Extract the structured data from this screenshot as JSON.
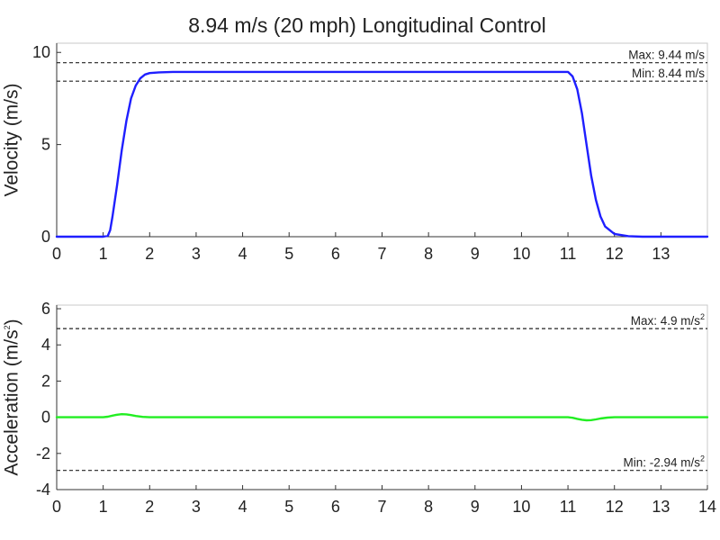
{
  "chart_data": [
    {
      "type": "line",
      "title": "8.94 m/s (20 mph) Longitudinal Control",
      "xlabel": "",
      "ylabel": "Velocity (m/s)",
      "xlim": [
        0,
        14
      ],
      "ylim": [
        0,
        10.5
      ],
      "x_ticks": [
        0,
        1,
        2,
        3,
        4,
        5,
        6,
        7,
        8,
        9,
        10,
        11,
        12,
        13
      ],
      "y_ticks": [
        0,
        5,
        10
      ],
      "grid": false,
      "series": [
        {
          "color": "#1f1fff",
          "x": [
            0,
            1.0,
            1.1,
            1.15,
            1.2,
            1.3,
            1.4,
            1.5,
            1.6,
            1.7,
            1.8,
            1.9,
            2.0,
            2.2,
            2.5,
            3.0,
            11.0,
            11.1,
            11.2,
            11.3,
            11.4,
            11.5,
            11.6,
            11.7,
            11.8,
            12.0,
            12.3,
            12.6,
            14.0
          ],
          "y": [
            0,
            0,
            0.05,
            0.35,
            1.1,
            2.8,
            4.7,
            6.3,
            7.5,
            8.2,
            8.6,
            8.8,
            8.88,
            8.92,
            8.94,
            8.94,
            8.94,
            8.7,
            8.0,
            6.7,
            5.0,
            3.3,
            2.0,
            1.1,
            0.55,
            0.15,
            0.03,
            0,
            0
          ]
        }
      ],
      "reference_lines": [
        {
          "y": 9.44,
          "label": "Max: 9.44 m/s",
          "style": "dashed"
        },
        {
          "y": 8.44,
          "label": "Min: 8.44 m/s",
          "style": "dashed"
        }
      ]
    },
    {
      "type": "line",
      "title": "",
      "xlabel": "",
      "ylabel": "Acceleration (m/s",
      "ylabel_superscript": "2",
      "ylabel_suffix": ")",
      "xlim": [
        0,
        14
      ],
      "ylim": [
        -4,
        6.2
      ],
      "x_ticks": [
        0,
        1,
        2,
        3,
        4,
        5,
        6,
        7,
        8,
        9,
        10,
        11,
        12,
        13,
        14
      ],
      "y_ticks": [
        -4,
        -2,
        0,
        2,
        4,
        6
      ],
      "grid": false,
      "series": [
        {
          "color": "#22ee22",
          "x": [
            0,
            1.0,
            1.1,
            1.2,
            1.3,
            1.4,
            1.5,
            1.6,
            1.7,
            1.85,
            2.0,
            11.0,
            11.1,
            11.2,
            11.3,
            11.4,
            11.5,
            11.6,
            11.7,
            11.85,
            12.0,
            14.0
          ],
          "y": [
            0,
            0,
            0.03,
            0.09,
            0.14,
            0.17,
            0.16,
            0.12,
            0.07,
            0.02,
            0,
            0,
            -0.03,
            -0.09,
            -0.14,
            -0.17,
            -0.16,
            -0.12,
            -0.07,
            -0.02,
            0,
            0
          ]
        }
      ],
      "reference_lines": [
        {
          "y": 4.9,
          "label": "Max: 4.9 m/s",
          "label_superscript": "2",
          "style": "dashed"
        },
        {
          "y": -2.94,
          "label": "Min: -2.94 m/s",
          "label_superscript": "2",
          "style": "dashed"
        }
      ]
    }
  ]
}
